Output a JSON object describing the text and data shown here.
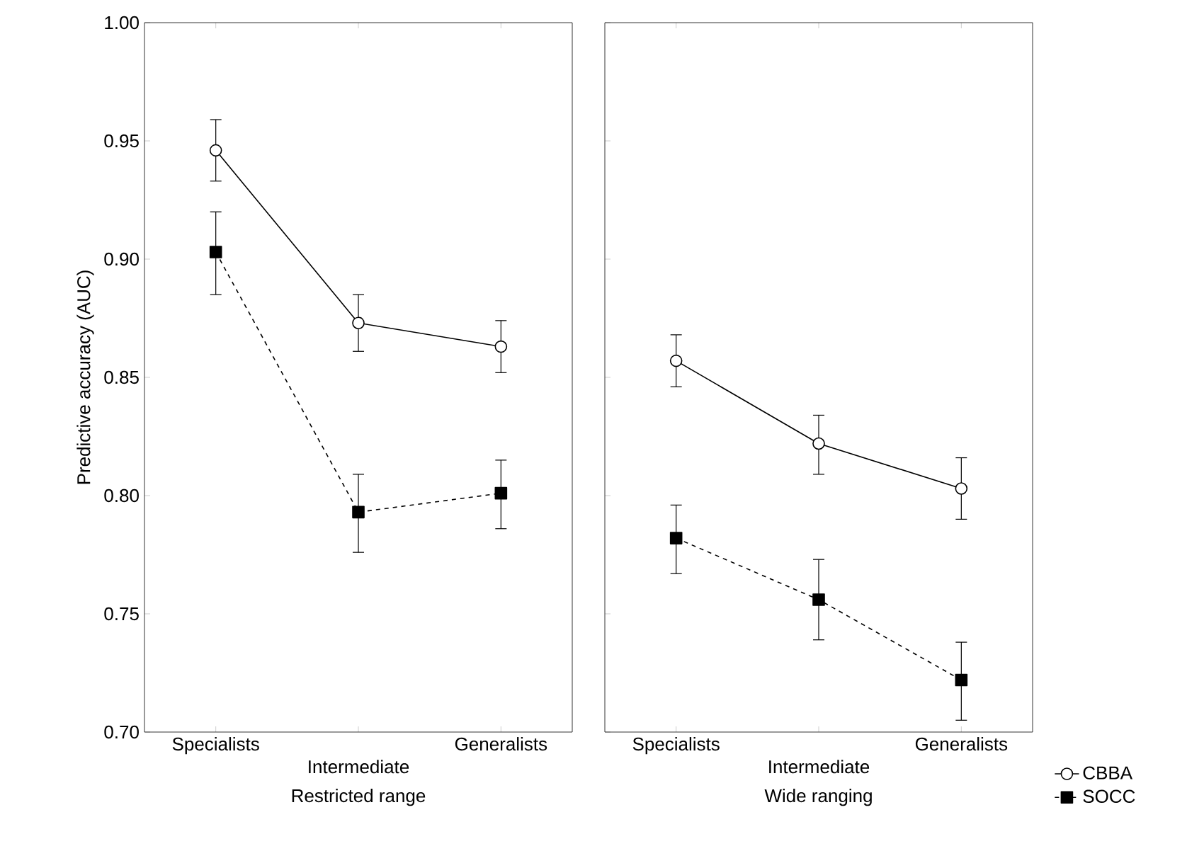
{
  "chart_data": [
    {
      "type": "line",
      "xlabel": "Restricted range",
      "ylabel": "Predictive accuracy (AUC)",
      "categories": [
        "Specialists",
        "Intermediate",
        "Generalists"
      ],
      "ylim": [
        0.7,
        1.0
      ],
      "yticks": [
        {
          "value": 0.7,
          "label": "0.70"
        },
        {
          "value": 0.75,
          "label": "0.75"
        },
        {
          "value": 0.8,
          "label": "0.80"
        },
        {
          "value": 0.85,
          "label": "0.85"
        },
        {
          "value": 0.9,
          "label": "0.90"
        },
        {
          "value": 0.95,
          "label": "0.95"
        },
        {
          "value": 1.0,
          "label": "1.00"
        }
      ],
      "grid": false,
      "legend": false,
      "series": [
        {
          "color": "#000000",
          "marker": "circle",
          "line_style": "solid",
          "values": [
            0.946,
            0.873,
            0.863
          ],
          "errors": [
            [
              0.933,
              0.959
            ],
            [
              0.861,
              0.885
            ],
            [
              0.852,
              0.874
            ]
          ]
        },
        {
          "color": "#000000",
          "marker": "square",
          "line_style": "dashed",
          "values": [
            0.903,
            0.793,
            0.801
          ],
          "errors": [
            [
              0.885,
              0.92
            ],
            [
              0.776,
              0.809
            ],
            [
              0.786,
              0.815
            ]
          ]
        }
      ]
    },
    {
      "type": "line",
      "xlabel": "Wide ranging",
      "categories": [
        "Specialists",
        "Intermediate",
        "Generalists"
      ],
      "ylim": [
        0.7,
        1.0
      ],
      "yticks": [
        0.7,
        0.75,
        0.8,
        0.85,
        0.9,
        0.95,
        1.0
      ],
      "tick_labels": "x",
      "grid": false,
      "legend": "bottom right",
      "series": [
        {
          "name": "CBBA",
          "color": "#000000",
          "marker": "circle",
          "line_style": "solid",
          "values": [
            0.857,
            0.822,
            0.803
          ],
          "errors": [
            [
              0.846,
              0.868
            ],
            [
              0.809,
              0.834
            ],
            [
              0.79,
              0.816
            ]
          ]
        },
        {
          "name": "SOCC",
          "color": "#000000",
          "marker": "square",
          "line_style": "dashed",
          "values": [
            0.782,
            0.756,
            0.722
          ],
          "errors": [
            [
              0.767,
              0.796
            ],
            [
              0.739,
              0.773
            ],
            [
              0.705,
              0.738
            ]
          ]
        }
      ]
    }
  ]
}
